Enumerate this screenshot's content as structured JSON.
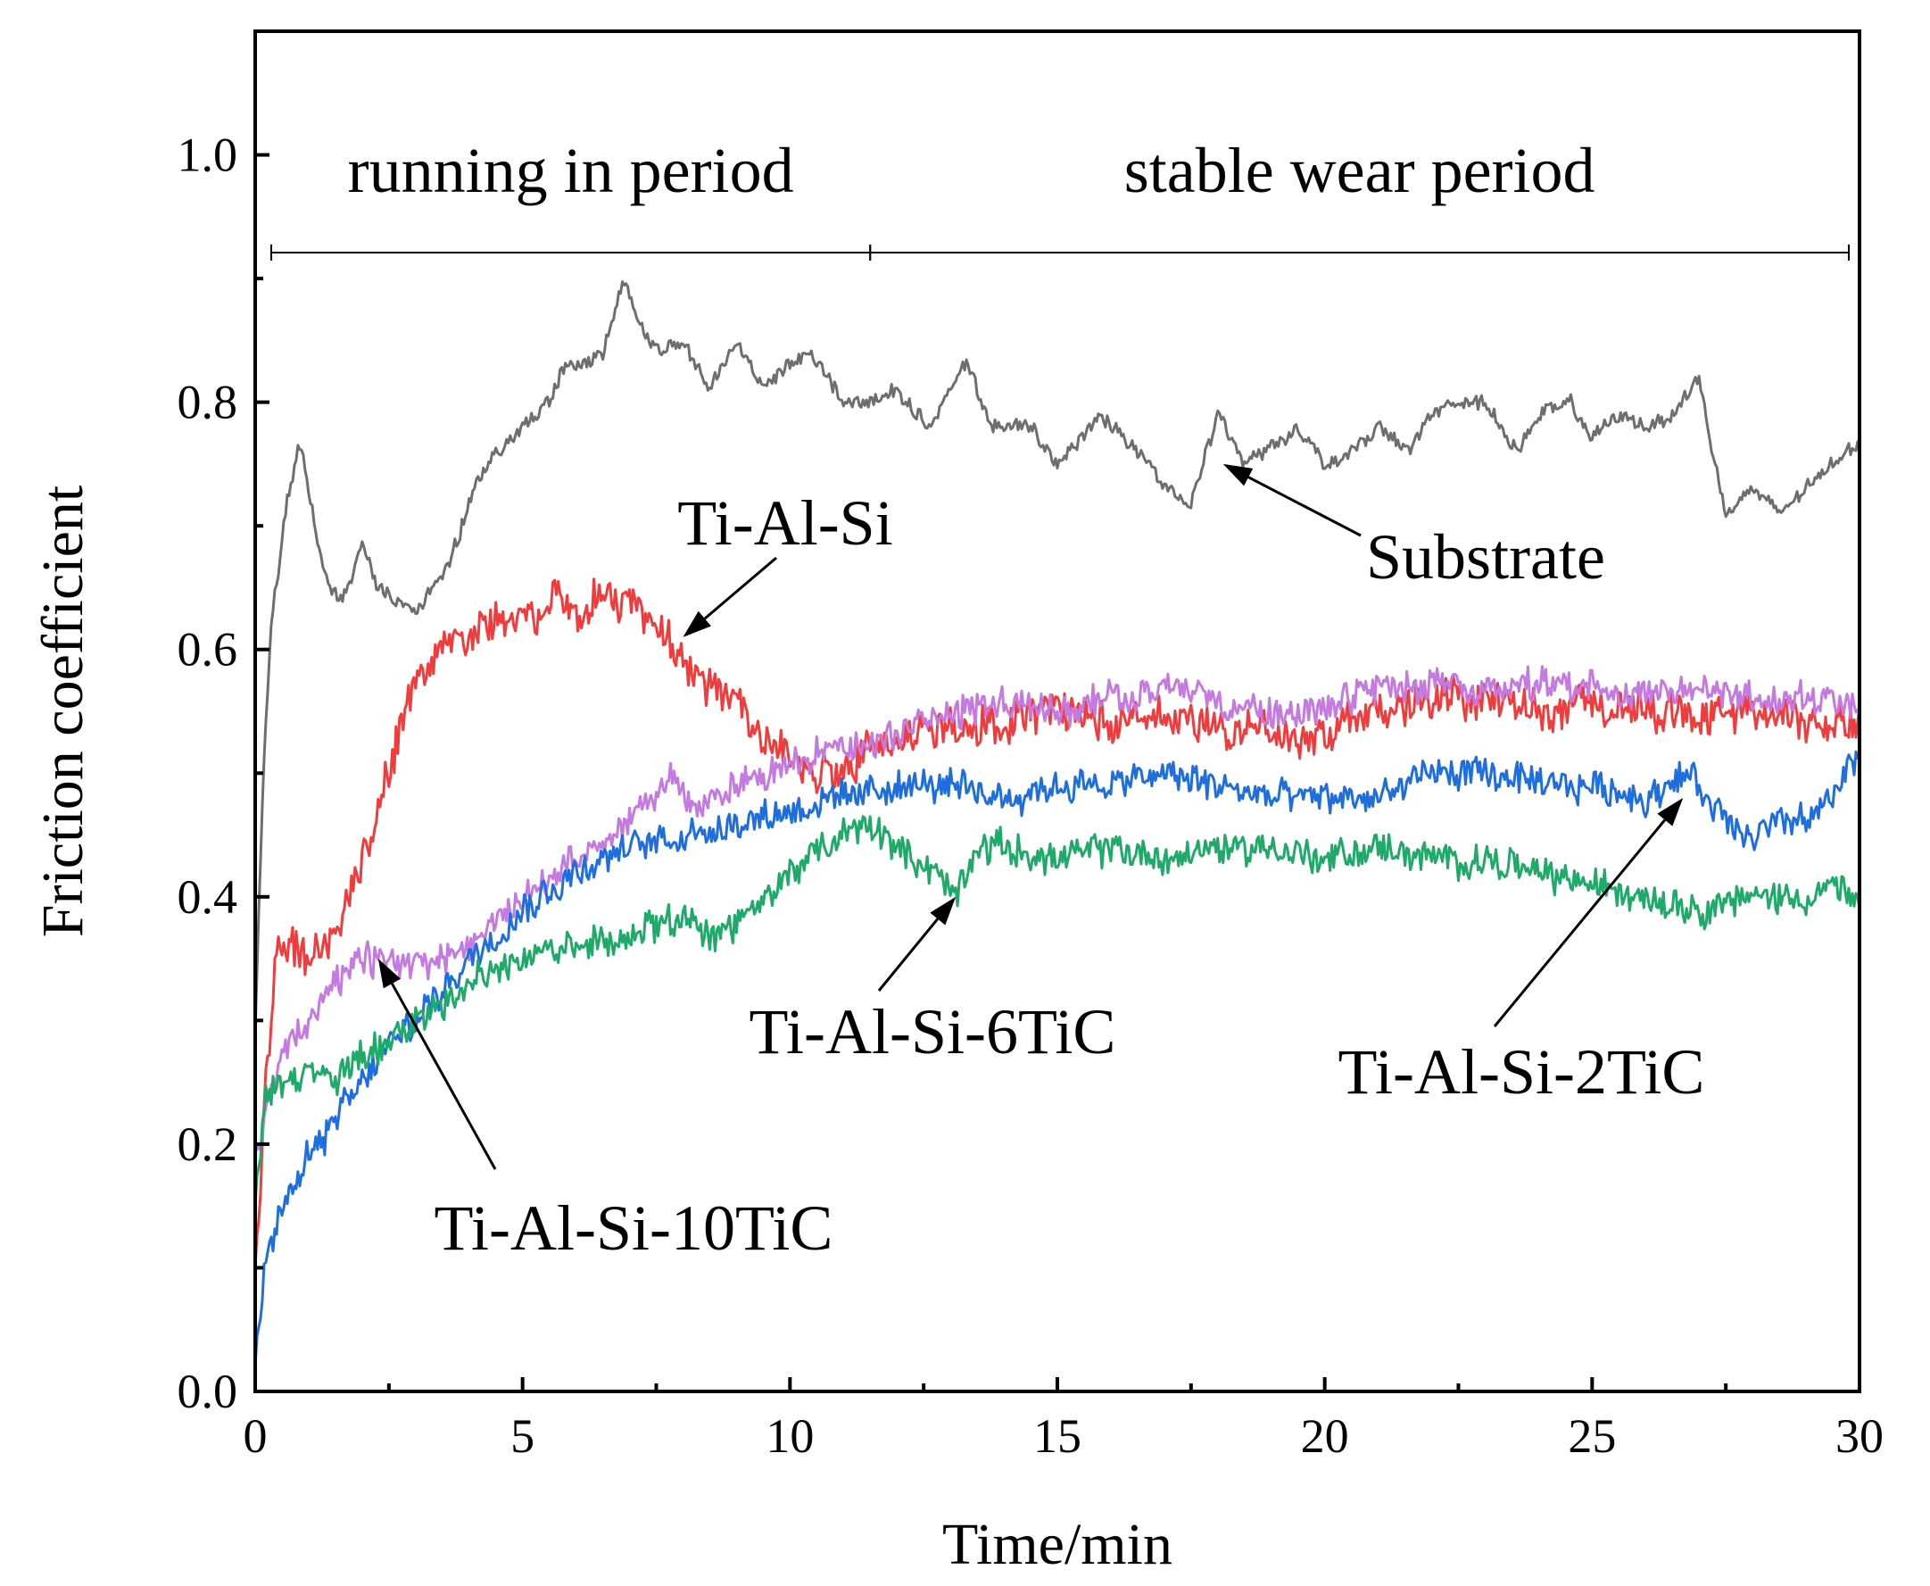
{
  "chart_data": {
    "type": "line",
    "xlabel": "Time/min",
    "ylabel": "Friction coefficient",
    "xlim": [
      0,
      30
    ],
    "ylim": [
      0,
      1.1
    ],
    "xticks": [
      0,
      5,
      10,
      15,
      20,
      25,
      30
    ],
    "xtick_labels": [
      "0",
      "5",
      "10",
      "15",
      "20",
      "25",
      "30"
    ],
    "yticks": [
      0.0,
      0.2,
      0.4,
      0.6,
      0.8,
      1.0
    ],
    "ytick_labels": [
      "0.0",
      "0.2",
      "0.4",
      "0.6",
      "0.8",
      "1.0"
    ],
    "periods": [
      {
        "label": "running in period",
        "start": 0.3,
        "end": 11.5
      },
      {
        "label": "stable wear period",
        "start": 11.5,
        "end": 29.8
      }
    ],
    "series": [
      {
        "name": "Substrate",
        "color": "#6e6e6e",
        "noise": 0.01,
        "points": [
          [
            0,
            0.29
          ],
          [
            0.15,
            0.5
          ],
          [
            0.3,
            0.62
          ],
          [
            0.6,
            0.72
          ],
          [
            0.85,
            0.77
          ],
          [
            1.0,
            0.73
          ],
          [
            1.2,
            0.68
          ],
          [
            1.4,
            0.65
          ],
          [
            1.6,
            0.64
          ],
          [
            1.9,
            0.67
          ],
          [
            2.0,
            0.69
          ],
          [
            2.3,
            0.65
          ],
          [
            2.6,
            0.64
          ],
          [
            3.0,
            0.63
          ],
          [
            3.5,
            0.66
          ],
          [
            3.8,
            0.69
          ],
          [
            4.1,
            0.73
          ],
          [
            4.5,
            0.76
          ],
          [
            5.0,
            0.78
          ],
          [
            5.5,
            0.8
          ],
          [
            5.8,
            0.83
          ],
          [
            6.2,
            0.83
          ],
          [
            6.5,
            0.84
          ],
          [
            6.9,
            0.9
          ],
          [
            7.2,
            0.86
          ],
          [
            7.6,
            0.84
          ],
          [
            8.0,
            0.85
          ],
          [
            8.5,
            0.81
          ],
          [
            9.0,
            0.85
          ],
          [
            9.5,
            0.81
          ],
          [
            10.0,
            0.83
          ],
          [
            10.4,
            0.84
          ],
          [
            11.0,
            0.8
          ],
          [
            11.5,
            0.8
          ],
          [
            12.0,
            0.81
          ],
          [
            12.6,
            0.78
          ],
          [
            13.3,
            0.83
          ],
          [
            13.8,
            0.78
          ],
          [
            14.5,
            0.78
          ],
          [
            15.0,
            0.75
          ],
          [
            15.8,
            0.79
          ],
          [
            16.5,
            0.76
          ],
          [
            17.1,
            0.73
          ],
          [
            17.5,
            0.72
          ],
          [
            18.0,
            0.79
          ],
          [
            18.5,
            0.75
          ],
          [
            19.2,
            0.77
          ],
          [
            19.5,
            0.78
          ],
          [
            20.0,
            0.75
          ],
          [
            20.5,
            0.76
          ],
          [
            21.0,
            0.78
          ],
          [
            21.6,
            0.76
          ],
          [
            22.0,
            0.79
          ],
          [
            22.5,
            0.8
          ],
          [
            23.0,
            0.8
          ],
          [
            23.6,
            0.76
          ],
          [
            24.0,
            0.79
          ],
          [
            24.6,
            0.8
          ],
          [
            25.0,
            0.77
          ],
          [
            25.5,
            0.79
          ],
          [
            26.0,
            0.78
          ],
          [
            26.5,
            0.79
          ],
          [
            27.0,
            0.82
          ],
          [
            27.2,
            0.77
          ],
          [
            27.5,
            0.71
          ],
          [
            28.0,
            0.73
          ],
          [
            28.5,
            0.71
          ],
          [
            29.0,
            0.73
          ],
          [
            29.5,
            0.75
          ],
          [
            30.0,
            0.77
          ]
        ]
      },
      {
        "name": "Ti-Al-Si",
        "color": "#f03c3c",
        "noise": 0.028,
        "points": [
          [
            0,
            0.1
          ],
          [
            0.2,
            0.25
          ],
          [
            0.4,
            0.36
          ],
          [
            1.0,
            0.35
          ],
          [
            1.5,
            0.37
          ],
          [
            1.8,
            0.41
          ],
          [
            2.2,
            0.45
          ],
          [
            2.5,
            0.5
          ],
          [
            2.8,
            0.55
          ],
          [
            3.0,
            0.58
          ],
          [
            3.5,
            0.6
          ],
          [
            4.0,
            0.61
          ],
          [
            4.5,
            0.63
          ],
          [
            5.0,
            0.62
          ],
          [
            5.5,
            0.64
          ],
          [
            6.0,
            0.63
          ],
          [
            6.5,
            0.64
          ],
          [
            7.0,
            0.64
          ],
          [
            7.5,
            0.62
          ],
          [
            8.0,
            0.59
          ],
          [
            8.5,
            0.57
          ],
          [
            9.0,
            0.56
          ],
          [
            9.5,
            0.53
          ],
          [
            10.0,
            0.51
          ],
          [
            10.5,
            0.5
          ],
          [
            11.0,
            0.5
          ],
          [
            11.5,
            0.52
          ],
          [
            12.0,
            0.53
          ],
          [
            13.0,
            0.54
          ],
          [
            14.0,
            0.54
          ],
          [
            15.0,
            0.55
          ],
          [
            16.0,
            0.54
          ],
          [
            17.0,
            0.55
          ],
          [
            18.0,
            0.54
          ],
          [
            19.0,
            0.53
          ],
          [
            20.0,
            0.53
          ],
          [
            21.0,
            0.55
          ],
          [
            22.0,
            0.56
          ],
          [
            23.0,
            0.56
          ],
          [
            24.0,
            0.55
          ],
          [
            25.0,
            0.56
          ],
          [
            26.0,
            0.55
          ],
          [
            27.0,
            0.55
          ],
          [
            28.0,
            0.55
          ],
          [
            29.0,
            0.54
          ],
          [
            30.0,
            0.54
          ]
        ]
      },
      {
        "name": "Ti-Al-Si-10TiC",
        "color": "#c47ae0",
        "noise": 0.022,
        "points": [
          [
            0,
            0.19
          ],
          [
            0.3,
            0.24
          ],
          [
            0.6,
            0.28
          ],
          [
            1.0,
            0.3
          ],
          [
            1.5,
            0.33
          ],
          [
            2.0,
            0.35
          ],
          [
            2.5,
            0.35
          ],
          [
            3.0,
            0.34
          ],
          [
            3.5,
            0.35
          ],
          [
            4.0,
            0.36
          ],
          [
            4.5,
            0.38
          ],
          [
            5.0,
            0.4
          ],
          [
            6.0,
            0.43
          ],
          [
            7.0,
            0.46
          ],
          [
            7.8,
            0.5
          ],
          [
            8.3,
            0.47
          ],
          [
            9.0,
            0.49
          ],
          [
            10.0,
            0.51
          ],
          [
            11.0,
            0.52
          ],
          [
            12.0,
            0.53
          ],
          [
            13.0,
            0.55
          ],
          [
            14.0,
            0.56
          ],
          [
            15.0,
            0.55
          ],
          [
            16.0,
            0.56
          ],
          [
            17.0,
            0.57
          ],
          [
            18.0,
            0.56
          ],
          [
            19.0,
            0.55
          ],
          [
            20.0,
            0.55
          ],
          [
            21.0,
            0.57
          ],
          [
            22.0,
            0.57
          ],
          [
            23.0,
            0.57
          ],
          [
            24.0,
            0.57
          ],
          [
            25.0,
            0.57
          ],
          [
            26.0,
            0.56
          ],
          [
            27.0,
            0.57
          ],
          [
            28.0,
            0.56
          ],
          [
            29.0,
            0.56
          ],
          [
            30.0,
            0.55
          ]
        ]
      },
      {
        "name": "Ti-Al-Si-2TiC",
        "color": "#1e6ee0",
        "noise": 0.022,
        "points": [
          [
            0,
            0.02
          ],
          [
            0.2,
            0.11
          ],
          [
            0.5,
            0.15
          ],
          [
            1.0,
            0.19
          ],
          [
            1.5,
            0.22
          ],
          [
            2.0,
            0.25
          ],
          [
            2.5,
            0.28
          ],
          [
            3.0,
            0.3
          ],
          [
            4.0,
            0.35
          ],
          [
            5.0,
            0.39
          ],
          [
            6.0,
            0.42
          ],
          [
            7.0,
            0.44
          ],
          [
            8.0,
            0.45
          ],
          [
            9.0,
            0.46
          ],
          [
            10.0,
            0.47
          ],
          [
            11.0,
            0.48
          ],
          [
            12.0,
            0.49
          ],
          [
            13.0,
            0.49
          ],
          [
            14.0,
            0.48
          ],
          [
            15.0,
            0.49
          ],
          [
            16.0,
            0.49
          ],
          [
            17.0,
            0.5
          ],
          [
            18.0,
            0.49
          ],
          [
            19.0,
            0.48
          ],
          [
            20.0,
            0.48
          ],
          [
            21.0,
            0.48
          ],
          [
            22.0,
            0.5
          ],
          [
            23.0,
            0.5
          ],
          [
            24.0,
            0.49
          ],
          [
            25.0,
            0.49
          ],
          [
            26.0,
            0.48
          ],
          [
            26.8,
            0.5
          ],
          [
            27.5,
            0.46
          ],
          [
            28.0,
            0.45
          ],
          [
            28.5,
            0.46
          ],
          [
            29.0,
            0.46
          ],
          [
            29.5,
            0.48
          ],
          [
            30.0,
            0.52
          ]
        ]
      },
      {
        "name": "Ti-Al-Si-6TiC",
        "color": "#1faa6a",
        "noise": 0.022,
        "points": [
          [
            0,
            0.15
          ],
          [
            0.2,
            0.24
          ],
          [
            0.5,
            0.25
          ],
          [
            1.0,
            0.26
          ],
          [
            1.5,
            0.25
          ],
          [
            2.0,
            0.27
          ],
          [
            3.0,
            0.3
          ],
          [
            4.0,
            0.33
          ],
          [
            5.0,
            0.35
          ],
          [
            6.0,
            0.36
          ],
          [
            7.0,
            0.37
          ],
          [
            8.0,
            0.38
          ],
          [
            8.7,
            0.37
          ],
          [
            9.2,
            0.38
          ],
          [
            10.0,
            0.42
          ],
          [
            11.0,
            0.45
          ],
          [
            11.5,
            0.46
          ],
          [
            12.0,
            0.44
          ],
          [
            12.7,
            0.42
          ],
          [
            13.1,
            0.4
          ],
          [
            13.5,
            0.44
          ],
          [
            14.0,
            0.44
          ],
          [
            15.0,
            0.43
          ],
          [
            16.0,
            0.44
          ],
          [
            17.0,
            0.43
          ],
          [
            18.0,
            0.44
          ],
          [
            19.0,
            0.44
          ],
          [
            20.0,
            0.43
          ],
          [
            21.0,
            0.44
          ],
          [
            22.0,
            0.43
          ],
          [
            23.0,
            0.43
          ],
          [
            24.0,
            0.42
          ],
          [
            25.0,
            0.41
          ],
          [
            26.0,
            0.4
          ],
          [
            27.0,
            0.39
          ],
          [
            28.0,
            0.4
          ],
          [
            29.0,
            0.4
          ],
          [
            29.5,
            0.41
          ],
          [
            30.0,
            0.39
          ]
        ]
      }
    ],
    "annotations": [
      {
        "text": "Ti-Al-Si",
        "target": [
          8.0,
          0.61
        ],
        "series": "Ti-Al-Si"
      },
      {
        "text": "Substrate",
        "target": [
          18.1,
          0.75
        ],
        "series": "Substrate"
      },
      {
        "text": "Ti-Al-Si-10TiC",
        "target": [
          2.3,
          0.35
        ],
        "series": "Ti-Al-Si-10TiC"
      },
      {
        "text": "Ti-Al-Si-6TiC",
        "target": [
          13.1,
          0.4
        ],
        "series": "Ti-Al-Si-6TiC"
      },
      {
        "text": "Ti-Al-Si-2TiC",
        "target": [
          26.7,
          0.48
        ],
        "series": "Ti-Al-Si-2TiC"
      }
    ]
  }
}
